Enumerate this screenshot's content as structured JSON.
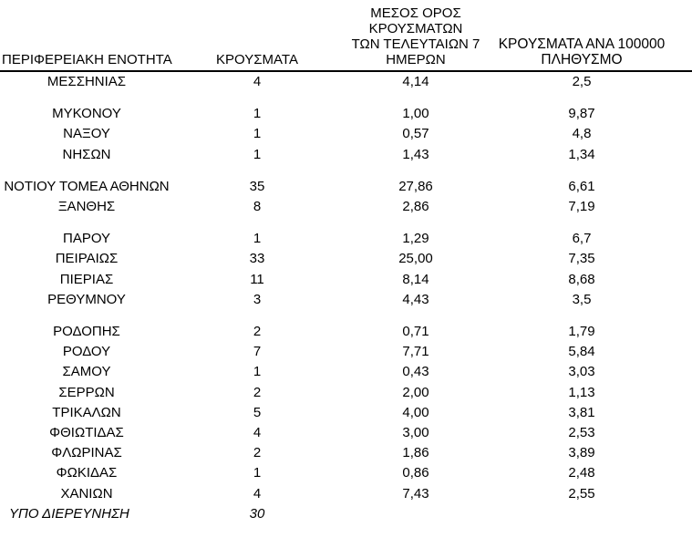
{
  "page": {
    "background_color": "#ffffff",
    "text_color": "#000000"
  },
  "table": {
    "headers": {
      "col1": "ΠΕΡΙΦΕΡΕΙΑΚΗ ΕΝΟΤΗΤΑ",
      "col2": "ΚΡΟΥΣΜΑΤΑ",
      "col3": "ΜΕΣΟΣ ΟΡΟΣ ΚΡΟΥΣΜΑΤΩΝ\nΤΩΝ ΤΕΛΕΥΤΑΙΩΝ 7\nΗΜΕΡΩΝ",
      "col4": "ΚΡΟΥΣΜΑΤΑ ΑΝΑ 100000\nΠΛΗΘΥΣΜΟ"
    },
    "rows": [
      {
        "region": "ΜΕΣΣΗΝΙΑΣ",
        "cases": "4",
        "avg_7day": "4,14",
        "per_100k": "2,5",
        "gap_before": false,
        "italic": false
      },
      {
        "region": "ΜΥΚΟΝΟΥ",
        "cases": "1",
        "avg_7day": "1,00",
        "per_100k": "9,87",
        "gap_before": true,
        "italic": false
      },
      {
        "region": "ΝΑΞΟΥ",
        "cases": "1",
        "avg_7day": "0,57",
        "per_100k": "4,8",
        "gap_before": false,
        "italic": false
      },
      {
        "region": "ΝΗΣΩΝ",
        "cases": "1",
        "avg_7day": "1,43",
        "per_100k": "1,34",
        "gap_before": false,
        "italic": false
      },
      {
        "region": "ΝΟΤΙΟΥ ΤΟΜΕΑ ΑΘΗΝΩΝ",
        "cases": "35",
        "avg_7day": "27,86",
        "per_100k": "6,61",
        "gap_before": true,
        "italic": false
      },
      {
        "region": "ΞΑΝΘΗΣ",
        "cases": "8",
        "avg_7day": "2,86",
        "per_100k": "7,19",
        "gap_before": false,
        "italic": false
      },
      {
        "region": "ΠΑΡΟΥ",
        "cases": "1",
        "avg_7day": "1,29",
        "per_100k": "6,7",
        "gap_before": true,
        "italic": false
      },
      {
        "region": "ΠΕΙΡΑΙΩΣ",
        "cases": "33",
        "avg_7day": "25,00",
        "per_100k": "7,35",
        "gap_before": false,
        "italic": false
      },
      {
        "region": "ΠΙΕΡΙΑΣ",
        "cases": "11",
        "avg_7day": "8,14",
        "per_100k": "8,68",
        "gap_before": false,
        "italic": false
      },
      {
        "region": "ΡΕΘΥΜΝΟΥ",
        "cases": "3",
        "avg_7day": "4,43",
        "per_100k": "3,5",
        "gap_before": false,
        "italic": false
      },
      {
        "region": "ΡΟΔΟΠΗΣ",
        "cases": "2",
        "avg_7day": "0,71",
        "per_100k": "1,79",
        "gap_before": true,
        "italic": false
      },
      {
        "region": "ΡΟΔΟΥ",
        "cases": "7",
        "avg_7day": "7,71",
        "per_100k": "5,84",
        "gap_before": false,
        "italic": false
      },
      {
        "region": "ΣΑΜΟΥ",
        "cases": "1",
        "avg_7day": "0,43",
        "per_100k": "3,03",
        "gap_before": false,
        "italic": false
      },
      {
        "region": "ΣΕΡΡΩΝ",
        "cases": "2",
        "avg_7day": "2,00",
        "per_100k": "1,13",
        "gap_before": false,
        "italic": false
      },
      {
        "region": "ΤΡΙΚΑΛΩΝ",
        "cases": "5",
        "avg_7day": "4,00",
        "per_100k": "3,81",
        "gap_before": false,
        "italic": false
      },
      {
        "region": "ΦΘΙΩΤΙΔΑΣ",
        "cases": "4",
        "avg_7day": "3,00",
        "per_100k": "2,53",
        "gap_before": false,
        "italic": false
      },
      {
        "region": "ΦΛΩΡΙΝΑΣ",
        "cases": "2",
        "avg_7day": "1,86",
        "per_100k": "3,89",
        "gap_before": false,
        "italic": false
      },
      {
        "region": "ΦΩΚΙΔΑΣ",
        "cases": "1",
        "avg_7day": "0,86",
        "per_100k": "2,48",
        "gap_before": false,
        "italic": false
      },
      {
        "region": "ΧΑΝΙΩΝ",
        "cases": "4",
        "avg_7day": "7,43",
        "per_100k": "2,55",
        "gap_before": false,
        "italic": false
      },
      {
        "region": "ΥΠΟ ΔΙΕΡΕΥΝΗΣΗ",
        "cases": "30",
        "avg_7day": "",
        "per_100k": "",
        "gap_before": false,
        "italic": true
      }
    ]
  }
}
